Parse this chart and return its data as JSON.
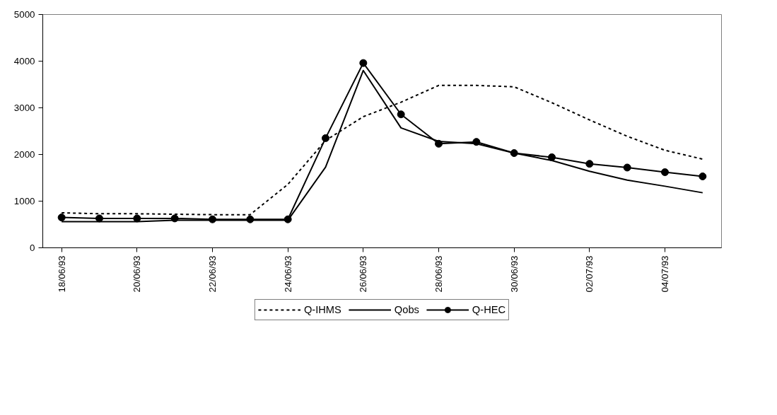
{
  "chart_data": {
    "type": "line",
    "categories": [
      "18/06/93",
      null,
      "20/06/93",
      null,
      "22/06/93",
      null,
      "24/06/93",
      null,
      "26/06/93",
      null,
      "28/06/93",
      null,
      "30/06/93",
      null,
      "02/07/93",
      null,
      "04/07/93",
      null
    ],
    "series": [
      {
        "name": "Q-IHMS",
        "color": "#000000",
        "line_style": "dotted",
        "marker": "none",
        "values": [
          750,
          730,
          730,
          720,
          710,
          710,
          1360,
          2300,
          2810,
          3120,
          3480,
          3480,
          3450,
          3110,
          2740,
          2390,
          2090,
          1900
        ]
      },
      {
        "name": "Qobs",
        "color": "#000000",
        "line_style": "solid",
        "marker": "none",
        "values": [
          560,
          560,
          560,
          590,
          590,
          590,
          590,
          1730,
          3800,
          2570,
          2280,
          2230,
          2030,
          1870,
          1640,
          1450,
          1320,
          1180
        ]
      },
      {
        "name": "Q-HEC",
        "color": "#000000",
        "line_style": "solid",
        "marker": "circle",
        "values": [
          650,
          630,
          630,
          630,
          610,
          610,
          610,
          2350,
          3960,
          2860,
          2230,
          2270,
          2030,
          1940,
          1800,
          1720,
          1620,
          1530
        ]
      }
    ],
    "ylim": [
      0,
      5000
    ],
    "yticks": [
      0,
      1000,
      2000,
      3000,
      4000,
      5000
    ],
    "grid": false,
    "legend": "bottom"
  }
}
